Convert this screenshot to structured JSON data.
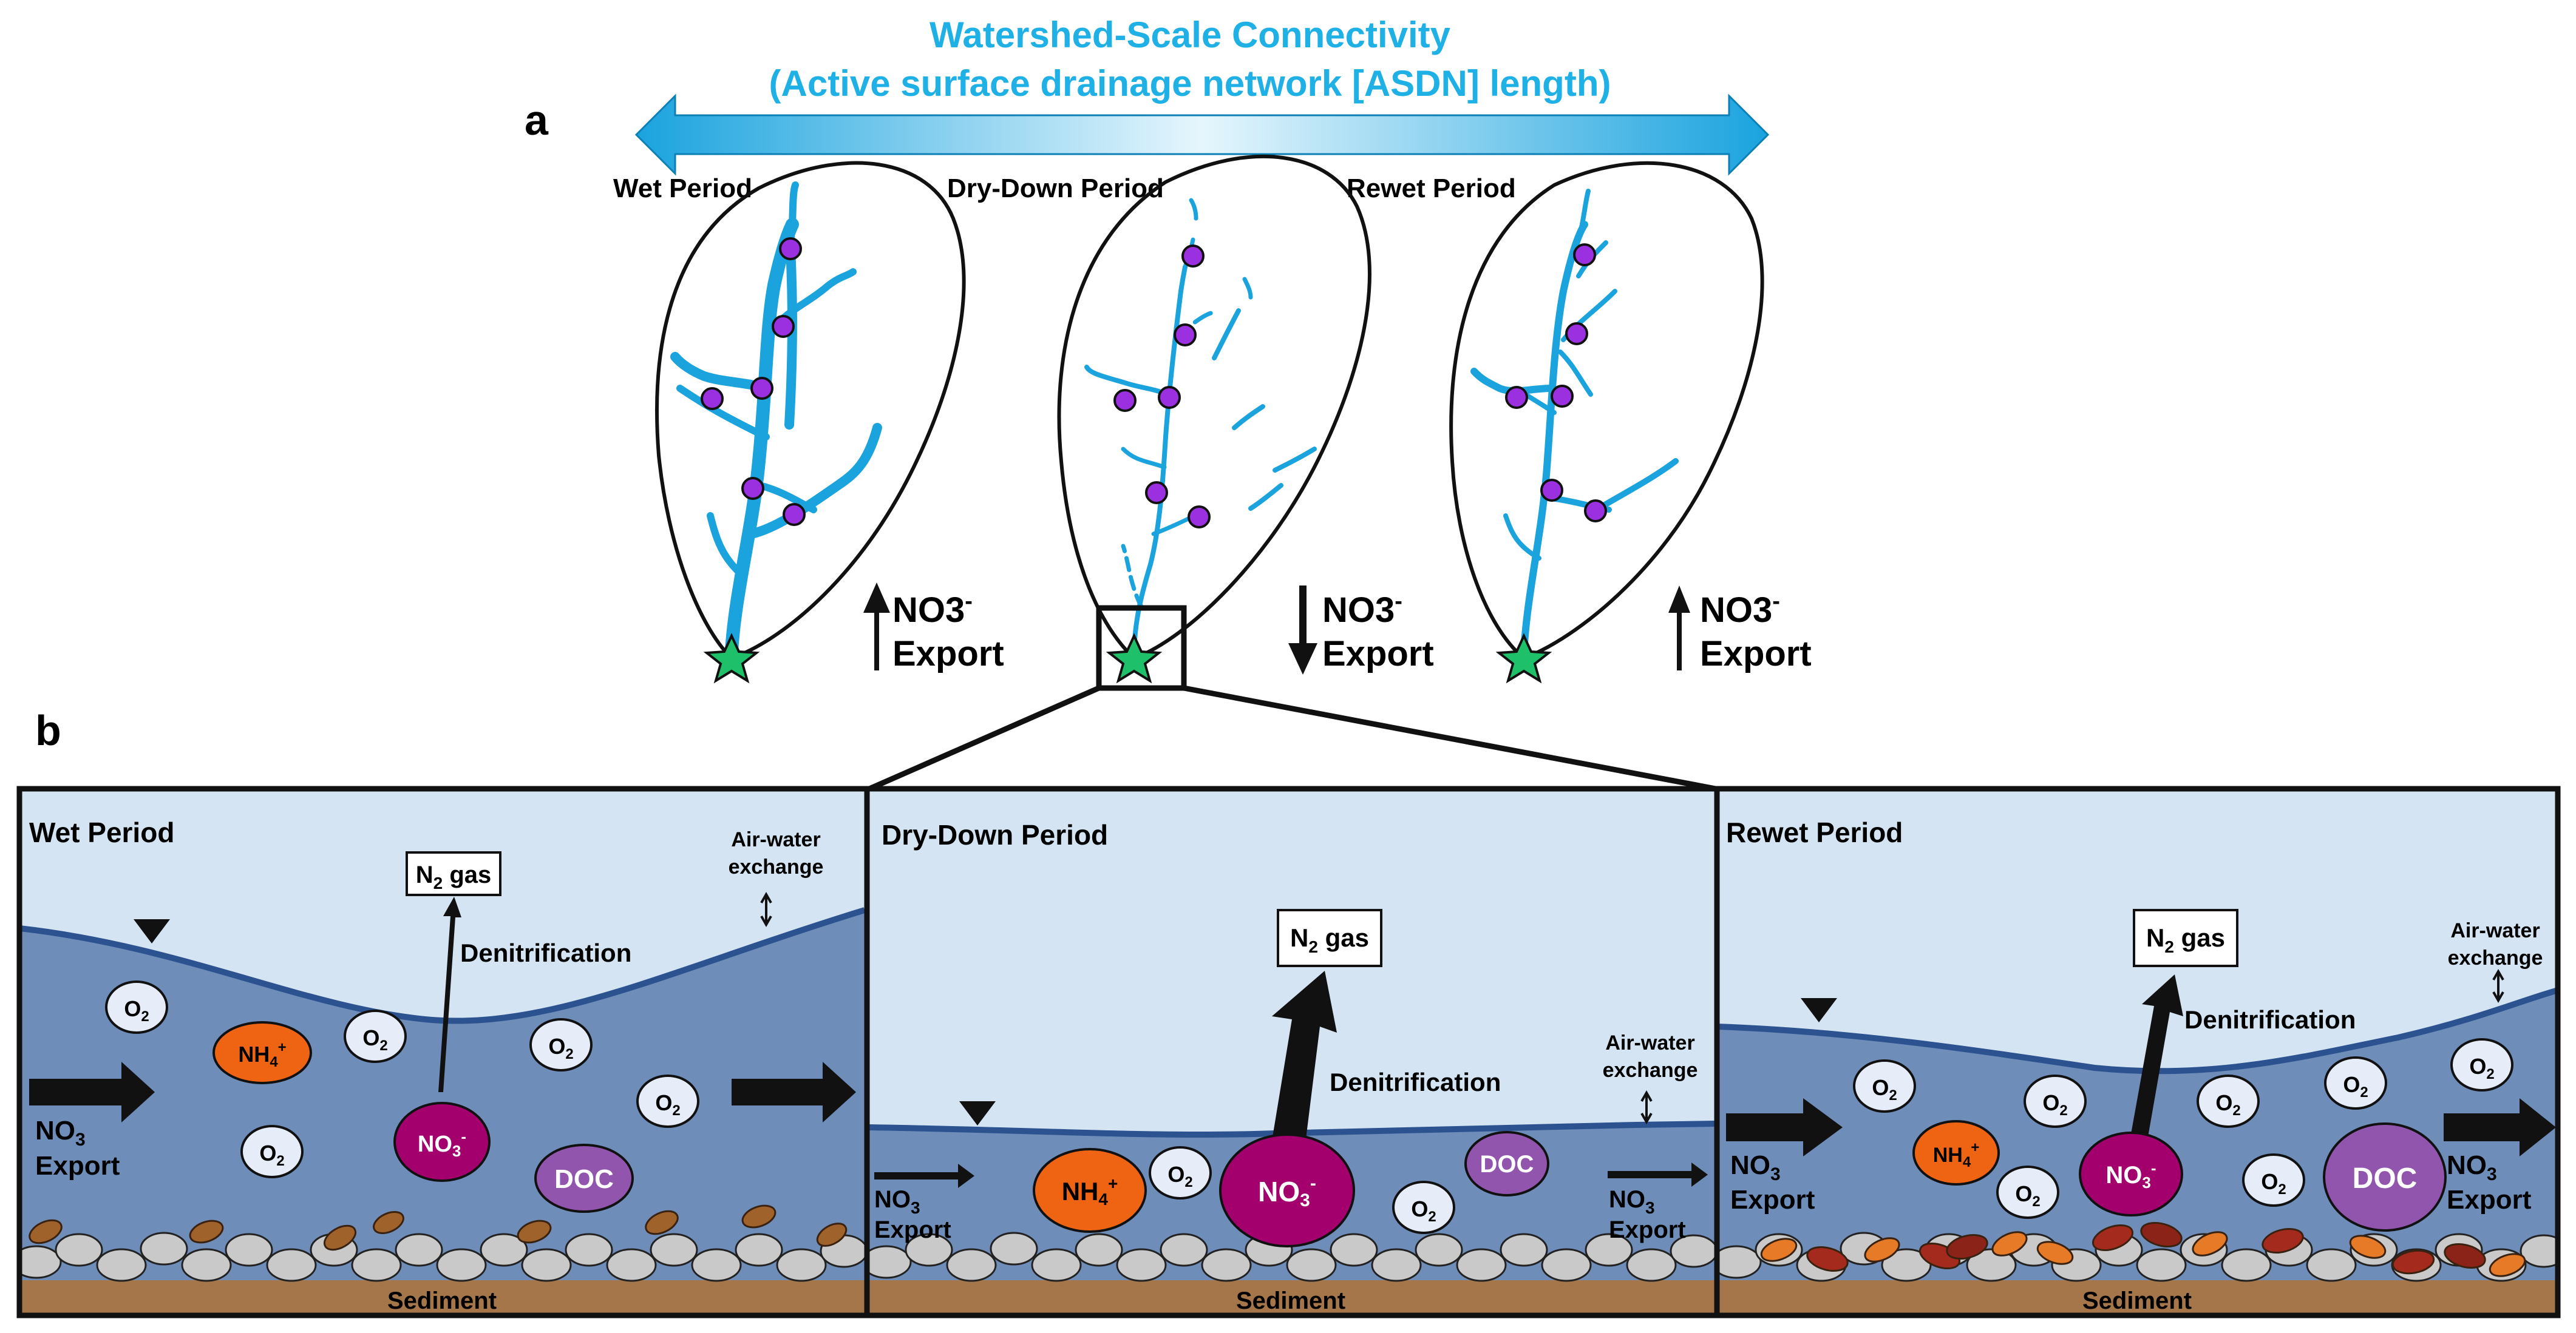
{
  "panel_a": {
    "letter": "a",
    "title_line1": "Watershed-Scale Connectivity",
    "title_line2": "(Active surface drainage network [ASDN] length)",
    "periods": [
      {
        "label": "Wet Period",
        "nitrate": "NO3",
        "nitrate_sup": "-",
        "export": "Export",
        "direction": "up"
      },
      {
        "label": "Dry-Down Period",
        "nitrate": "NO3",
        "nitrate_sup": "-",
        "export": "Export",
        "direction": "down"
      },
      {
        "label": "Rewet Period",
        "nitrate": "NO3",
        "nitrate_sup": "-",
        "export": "Export",
        "direction": "up"
      }
    ]
  },
  "panel_b": {
    "letter": "b",
    "sediment": "Sediment",
    "n2_main": "N",
    "n2_sub": "2",
    "n2_rest": " gas",
    "denitrification": "Denitrification",
    "air_water_1": "Air-water",
    "air_water_2": "exchange",
    "o2_main": "O",
    "o2_sub": "2",
    "nh4_main": "NH",
    "nh4_sub": "4",
    "nh4_sup": "+",
    "no3_main": "NO",
    "no3_sub": "3",
    "no3_sup": "-",
    "doc": "DOC",
    "export_no3": "NO",
    "export_sub": "3",
    "export_word": "Export",
    "period_wet": "Wet Period",
    "period_dry": "Dry-Down Period",
    "period_rewet": "Rewet Period"
  },
  "colors": {
    "stream": "#1ba3de",
    "title": "#1fb0e6",
    "node": "#9b30e0",
    "star": "#1fc06a",
    "sky": "#d4e4f3",
    "water": "#6f8db9",
    "surface": "#2c5290",
    "nh4": "#ef6412",
    "no3": "#a3006e",
    "doc": "#9255ad",
    "o2": "#e6edf8",
    "sediment": "#a5764a"
  }
}
